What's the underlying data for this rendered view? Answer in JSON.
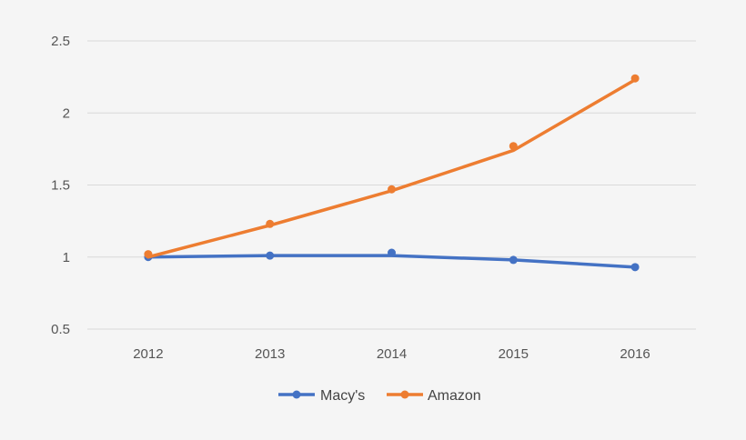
{
  "chart_data": {
    "type": "line",
    "categories": [
      "2012",
      "2013",
      "2014",
      "2015",
      "2016"
    ],
    "series": [
      {
        "name": "Macy's",
        "color": "#4472C4",
        "line": [
          1.0,
          1.01,
          1.01,
          0.98,
          0.93
        ],
        "markers": [
          1.0,
          1.01,
          1.03,
          0.98,
          0.93
        ]
      },
      {
        "name": "Amazon",
        "color": "#ED7D31",
        "line": [
          1.0,
          1.22,
          1.46,
          1.74,
          2.23
        ],
        "markers": [
          1.02,
          1.23,
          1.47,
          1.77,
          2.24
        ]
      }
    ],
    "yticks": [
      "0.5",
      "1",
      "1.5",
      "2",
      "2.5"
    ],
    "ylim": [
      0.5,
      2.5
    ],
    "grid": true,
    "legend_position": "bottom"
  }
}
